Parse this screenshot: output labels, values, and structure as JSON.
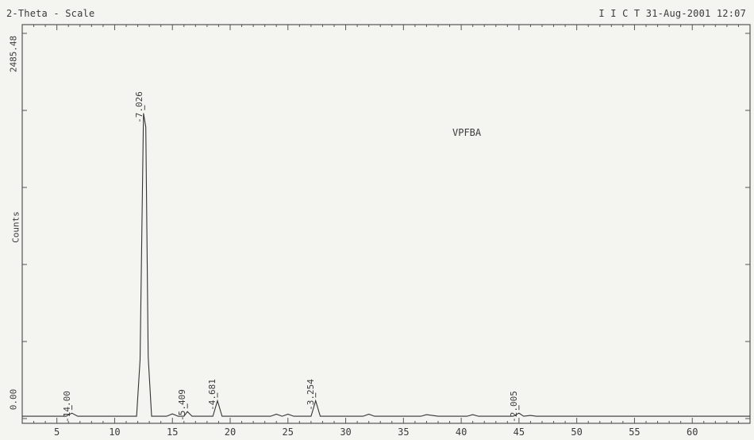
{
  "header": {
    "left": "2-Theta - Scale",
    "right": "I I C T 31-Aug-2001 12:07"
  },
  "chart_data": {
    "type": "line",
    "title": "",
    "xlabel": "",
    "ylabel": "Counts",
    "sample_label": "VPFBA",
    "xlim": [
      2,
      65
    ],
    "ylim": [
      0,
      2485.48
    ],
    "y_tick_labels": [
      "0.00",
      "2485.48"
    ],
    "x_ticks": [
      5,
      10,
      15,
      20,
      25,
      30,
      35,
      40,
      45,
      50,
      55,
      60
    ],
    "series": [
      {
        "x": [
          2,
          5.8,
          6.3,
          6.8,
          11.9,
          12.2,
          12.5,
          12.7,
          12.9,
          13.2,
          14.5,
          15.0,
          15.5,
          16.0,
          16.3,
          16.7,
          17.5,
          18.5,
          18.9,
          19.3,
          20.0,
          23.5,
          24.0,
          24.5,
          25.0,
          25.5,
          26.0,
          27.0,
          27.4,
          27.8,
          28.5,
          29.5,
          30.0,
          31.5,
          32.0,
          32.5,
          35.0,
          36.5,
          37.0,
          38.0,
          40.5,
          41.0,
          41.5,
          43.0,
          44.5,
          45.0,
          45.4,
          46.0,
          46.5,
          47.0,
          48.0,
          65
        ],
        "y": [
          15,
          15,
          35,
          15,
          15,
          380,
          1970,
          1880,
          400,
          15,
          15,
          30,
          15,
          15,
          45,
          15,
          15,
          15,
          115,
          15,
          15,
          15,
          28,
          15,
          28,
          15,
          15,
          15,
          115,
          15,
          15,
          15,
          15,
          15,
          28,
          15,
          15,
          15,
          25,
          15,
          15,
          25,
          15,
          15,
          15,
          35,
          15,
          20,
          15,
          15,
          15,
          15
        ]
      }
    ],
    "peaks": [
      {
        "x": 6.3,
        "y": 35,
        "label": "-14.00"
      },
      {
        "x": 12.6,
        "y": 1970,
        "label": "-7.026"
      },
      {
        "x": 16.3,
        "y": 45,
        "label": "-5.409"
      },
      {
        "x": 18.9,
        "y": 115,
        "label": "-4.681"
      },
      {
        "x": 27.4,
        "y": 115,
        "label": "-3.254"
      },
      {
        "x": 45.0,
        "y": 35,
        "label": "-2.005"
      }
    ],
    "grid": false,
    "legend": "none"
  }
}
